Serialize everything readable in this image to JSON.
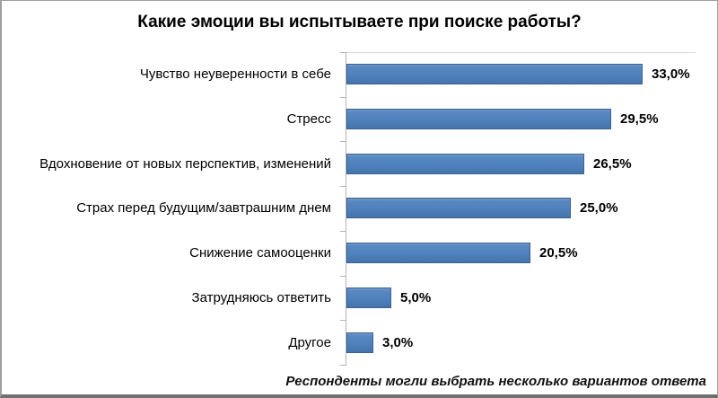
{
  "chart_data": {
    "type": "bar",
    "orientation": "horizontal",
    "title": "Какие эмоции вы испытываете при поиске работы?",
    "categories": [
      "Чувство неуверенности в себе",
      "Стресс",
      "Вдохновение от новых перспектив, изменений",
      "Страх перед будущим/завтрашним днем",
      "Снижение самооценки",
      "Затрудняюсь ответить",
      "Другое"
    ],
    "values": [
      33.0,
      29.5,
      26.5,
      25.0,
      20.5,
      5.0,
      3.0
    ],
    "value_labels": [
      "33,0%",
      "29,5%",
      "26,5%",
      "25,0%",
      "20,5%",
      "5,0%",
      "3,0%"
    ],
    "xlabel": "",
    "ylabel": "",
    "xlim": [
      0,
      35
    ],
    "grid": false,
    "legend": "none",
    "note": "Респонденты могли выбрать несколько вариантов ответа",
    "bar_color": "#4F81BD",
    "bar_border_color": "#3A6293",
    "axis_color": "#B3B3B3"
  }
}
